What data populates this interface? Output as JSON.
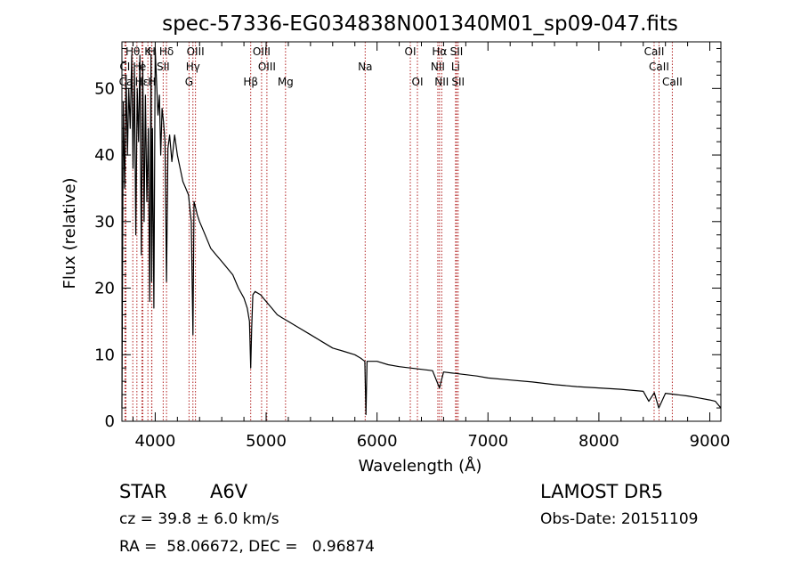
{
  "chart_data": {
    "type": "line",
    "title": "spec-57336-EG034838N001340M01_sp09-047.fits",
    "xlabel": "Wavelength (Å)",
    "ylabel": "Flux (relative)",
    "xlim": [
      3700,
      9100
    ],
    "ylim": [
      0,
      57
    ],
    "xticks": [
      4000,
      5000,
      6000,
      7000,
      8000,
      9000
    ],
    "yticks": [
      0,
      10,
      20,
      30,
      40,
      50
    ],
    "grid": false,
    "line_color": "#000000",
    "marker_color": "#b22222",
    "series": [
      {
        "x": [
          3700,
          3712,
          3725,
          3738,
          3750,
          3762,
          3775,
          3788,
          3800,
          3812,
          3825,
          3838,
          3850,
          3862,
          3875,
          3888,
          3900,
          3912,
          3925,
          3938,
          3950,
          3962,
          3968,
          3975,
          3988,
          4000,
          4012,
          4025,
          4038,
          4050,
          4062,
          4075,
          4088,
          4102,
          4115,
          4130,
          4150,
          4175,
          4200,
          4225,
          4250,
          4275,
          4300,
          4325,
          4340,
          4350,
          4365,
          4380,
          4400,
          4425,
          4450,
          4475,
          4500,
          4550,
          4600,
          4650,
          4700,
          4750,
          4800,
          4830,
          4850,
          4861,
          4870,
          4880,
          4900,
          4950,
          5000,
          5050,
          5100,
          5150,
          5200,
          5300,
          5400,
          5500,
          5600,
          5700,
          5800,
          5850,
          5890,
          5900,
          5910,
          5950,
          6000,
          6100,
          6200,
          6300,
          6400,
          6500,
          6563,
          6600,
          6700,
          6800,
          6900,
          7000,
          7200,
          7400,
          7600,
          7800,
          8000,
          8200,
          8400,
          8450,
          8500,
          8540,
          8600,
          8700,
          8800,
          8900,
          9000,
          9050,
          9100
        ],
        "y": [
          2,
          48,
          35,
          52,
          40,
          50,
          44,
          55,
          38,
          53,
          28,
          50,
          42,
          55,
          25,
          54,
          30,
          49,
          33,
          44,
          18,
          55,
          21,
          44,
          17,
          56,
          51,
          46,
          49,
          40,
          47,
          45,
          42,
          21,
          41,
          43,
          39,
          43,
          40,
          38,
          36,
          35,
          34,
          30,
          13,
          33,
          32,
          31,
          30,
          29,
          28,
          27,
          26,
          25,
          24,
          23,
          22,
          20,
          18.5,
          17,
          15,
          8,
          14,
          19,
          19.5,
          19,
          18,
          17,
          16,
          15.5,
          15,
          14,
          13,
          12,
          11,
          10.5,
          10,
          9.5,
          9,
          1,
          9,
          9,
          9,
          8.5,
          8.2,
          8,
          7.8,
          7.6,
          5,
          7.4,
          7.2,
          7,
          6.8,
          6.5,
          6.2,
          5.9,
          5.5,
          5.2,
          5,
          4.8,
          4.5,
          3,
          4.3,
          2,
          4.2,
          4,
          3.8,
          3.5,
          3.2,
          3,
          2
        ]
      }
    ],
    "lines": [
      {
        "label": "Hθ",
        "wavelength": 3798,
        "row": 1
      },
      {
        "label": "H",
        "wavelength": 3968,
        "row": 1
      },
      {
        "label": "K",
        "wavelength": 3934,
        "row": 1
      },
      {
        "label": "Hδ",
        "wavelength": 4102,
        "row": 1
      },
      {
        "label": "OIII",
        "wavelength": 4363,
        "row": 1
      },
      {
        "label": "OIII",
        "wavelength": 4959,
        "row": 1
      },
      {
        "label": "OI",
        "wavelength": 6300,
        "row": 1
      },
      {
        "label": "Hα",
        "wavelength": 6563,
        "row": 1
      },
      {
        "label": "SII",
        "wavelength": 6717,
        "row": 1
      },
      {
        "label": "CaII",
        "wavelength": 8498,
        "row": 1
      },
      {
        "label": "CI",
        "wavelength": 3727,
        "row": 2
      },
      {
        "label": "H",
        "wavelength": 3835,
        "row": 2
      },
      {
        "label": "e",
        "wavelength": 3889,
        "row": 2
      },
      {
        "label": "SII",
        "wavelength": 4072,
        "row": 2
      },
      {
        "label": "Hγ",
        "wavelength": 4340,
        "row": 2
      },
      {
        "label": "OIII",
        "wavelength": 5007,
        "row": 2
      },
      {
        "label": "Na",
        "wavelength": 5893,
        "row": 2
      },
      {
        "label": "NII",
        "wavelength": 6548,
        "row": 2
      },
      {
        "label": "Li",
        "wavelength": 6708,
        "row": 2
      },
      {
        "label": "CaII",
        "wavelength": 8542,
        "row": 2
      },
      {
        "label": "Ca",
        "wavelength": 3736,
        "row": 3
      },
      {
        "label": "Hε",
        "wavelength": 3880,
        "row": 3
      },
      {
        "label": "H",
        "wavelength": 3970,
        "row": 3
      },
      {
        "label": "G",
        "wavelength": 4305,
        "row": 3
      },
      {
        "label": "Hβ",
        "wavelength": 4861,
        "row": 3
      },
      {
        "label": "Mg",
        "wavelength": 5175,
        "row": 3
      },
      {
        "label": "OI",
        "wavelength": 6364,
        "row": 3
      },
      {
        "label": "NII",
        "wavelength": 6583,
        "row": 3
      },
      {
        "label": "SII",
        "wavelength": 6731,
        "row": 3
      },
      {
        "label": "CaII",
        "wavelength": 8662,
        "row": 3
      }
    ]
  },
  "info": {
    "object_class": "STAR",
    "subclass": "A6V",
    "survey": "LAMOST DR5",
    "redshift": "cz = 39.8 ± 6.0 km/s",
    "obs_date": "Obs-Date: 20151109",
    "coords": "RA =  58.06672, DEC =   0.96874"
  }
}
